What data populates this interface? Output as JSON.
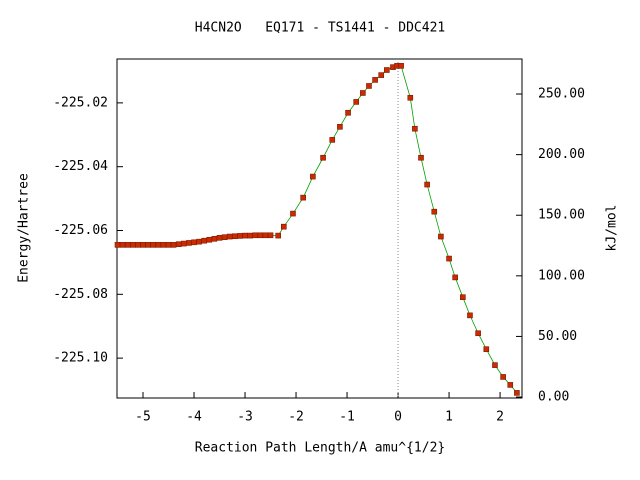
{
  "chart_data": {
    "type": "line",
    "title": "H4CN2O   EQ171 - TS1441 - DDC421",
    "xlabel": "Reaction Path Length/A amu^{1/2}",
    "ylabel": "Energy/Hartree",
    "y2label": "kJ/mol",
    "xlim": [
      -5.51,
      2.43
    ],
    "xticks": [
      -5,
      -4,
      -3,
      -2,
      -1,
      0,
      1,
      2
    ],
    "ylim": [
      -225.1125,
      -225.00625
    ],
    "yticks": [
      {
        "value": -225.1,
        "label": "-225.10"
      },
      -225.08,
      -225.06,
      -225.04,
      -225.02
    ],
    "y2lim": [
      -0.8,
      278.9
    ],
    "y2ticks": [
      {
        "value": 0,
        "label": "0.00"
      },
      {
        "value": 50,
        "label": "50.00"
      },
      {
        "value": 100,
        "label": "100.00"
      },
      {
        "value": 150,
        "label": "150.00"
      },
      {
        "value": 200,
        "label": "200.00"
      },
      {
        "value": 250,
        "label": "250.00"
      }
    ],
    "ts_line_x": 0,
    "line_color": "#00a000",
    "marker_color": "#cc2a00",
    "x": [
      -5.5,
      -5.4,
      -5.3,
      -5.2,
      -5.1,
      -5.0,
      -4.9,
      -4.8,
      -4.7,
      -4.6,
      -4.5,
      -4.4,
      -4.3,
      -4.2,
      -4.1,
      -4.0,
      -3.9,
      -3.8,
      -3.7,
      -3.6,
      -3.5,
      -3.4,
      -3.3,
      -3.2,
      -3.1,
      -3.0,
      -2.9,
      -2.8,
      -2.7,
      -2.6,
      -2.5,
      -2.35,
      -2.24,
      -2.06,
      -1.86,
      -1.67,
      -1.47,
      -1.29,
      -1.14,
      -0.98,
      -0.82,
      -0.69,
      -0.57,
      -0.45,
      -0.33,
      -0.22,
      -0.1,
      -0.02,
      0.06,
      0.24,
      0.33,
      0.45,
      0.57,
      0.71,
      0.84,
      1.0,
      1.12,
      1.27,
      1.41,
      1.57,
      1.73,
      1.9,
      2.06,
      2.2,
      2.33
    ],
    "series": [
      {
        "values": [
          -225.0645,
          -225.0645,
          -225.0645,
          -225.0645,
          -225.0645,
          -225.0645,
          -225.0645,
          -225.0645,
          -225.0645,
          -225.0645,
          -225.0645,
          -225.0645,
          -225.0643,
          -225.0641,
          -225.0639,
          -225.0637,
          -225.0635,
          -225.0632,
          -225.0629,
          -225.0626,
          -225.0623,
          -225.0621,
          -225.0619,
          -225.0618,
          -225.0617,
          -225.0616,
          -225.0616,
          -225.0615,
          -225.0615,
          -225.0615,
          -225.0615,
          -225.0616,
          -225.0588,
          -225.0547,
          -225.0497,
          -225.0431,
          -225.0372,
          -225.0316,
          -225.0275,
          -225.0231,
          -225.0197,
          -225.0169,
          -225.0147,
          -225.0128,
          -225.0113,
          -225.0097,
          -225.0088,
          -225.0084,
          -225.0084,
          -225.0184,
          -225.0281,
          -225.0372,
          -225.0456,
          -225.0541,
          -225.0619,
          -225.0688,
          -225.0747,
          -225.0809,
          -225.0866,
          -225.0922,
          -225.0972,
          -225.1022,
          -225.1059,
          -225.1084,
          -225.1109
        ]
      }
    ]
  }
}
